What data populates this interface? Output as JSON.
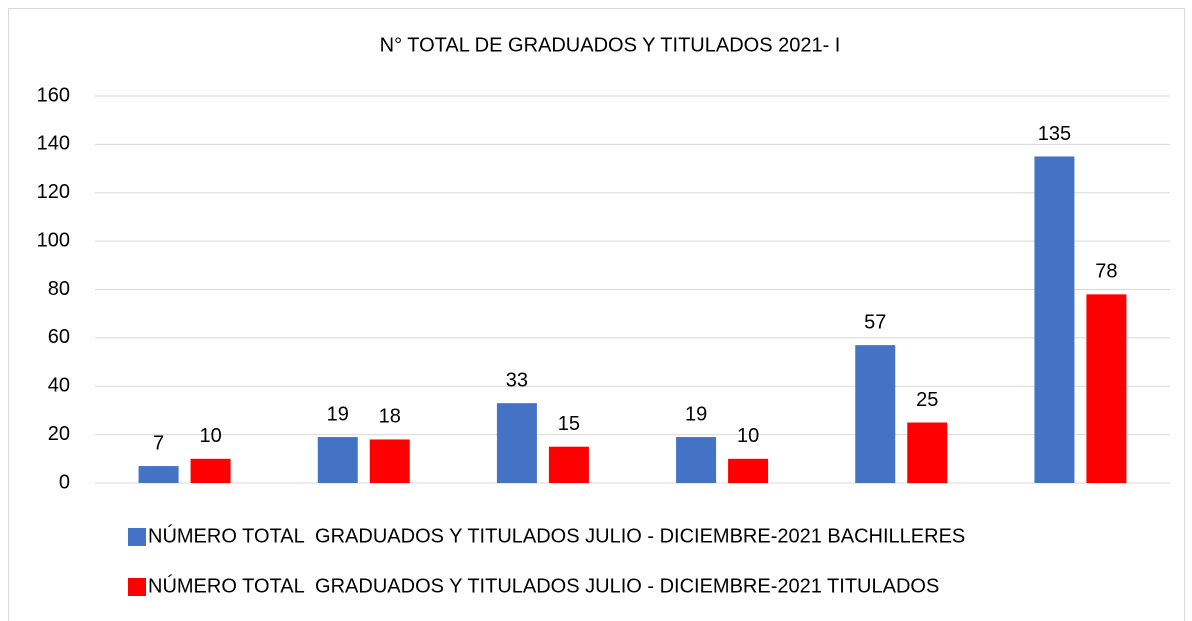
{
  "chart_data": {
    "type": "bar",
    "title": "N° TOTAL DE GRADUADOS Y TITULADOS 2021- I",
    "categories": [
      null,
      null,
      null,
      null,
      null,
      null
    ],
    "series": [
      {
        "name": "NÚMERO TOTAL  GRADUADOS Y TITULADOS JULIO - DICIEMBRE-2021 BACHILLERES",
        "color": "#4472c4",
        "values": [
          7,
          19,
          33,
          19,
          57,
          135
        ]
      },
      {
        "name": "NÚMERO TOTAL  GRADUADOS Y TITULADOS JULIO - DICIEMBRE-2021 TITULADOS",
        "color": "#ff0000",
        "values": [
          10,
          18,
          15,
          10,
          25,
          78
        ]
      }
    ],
    "ylim": [
      0,
      160
    ],
    "yticks": [
      0,
      20,
      40,
      60,
      80,
      100,
      120,
      140,
      160
    ],
    "grid": true,
    "legend": "bottom"
  }
}
